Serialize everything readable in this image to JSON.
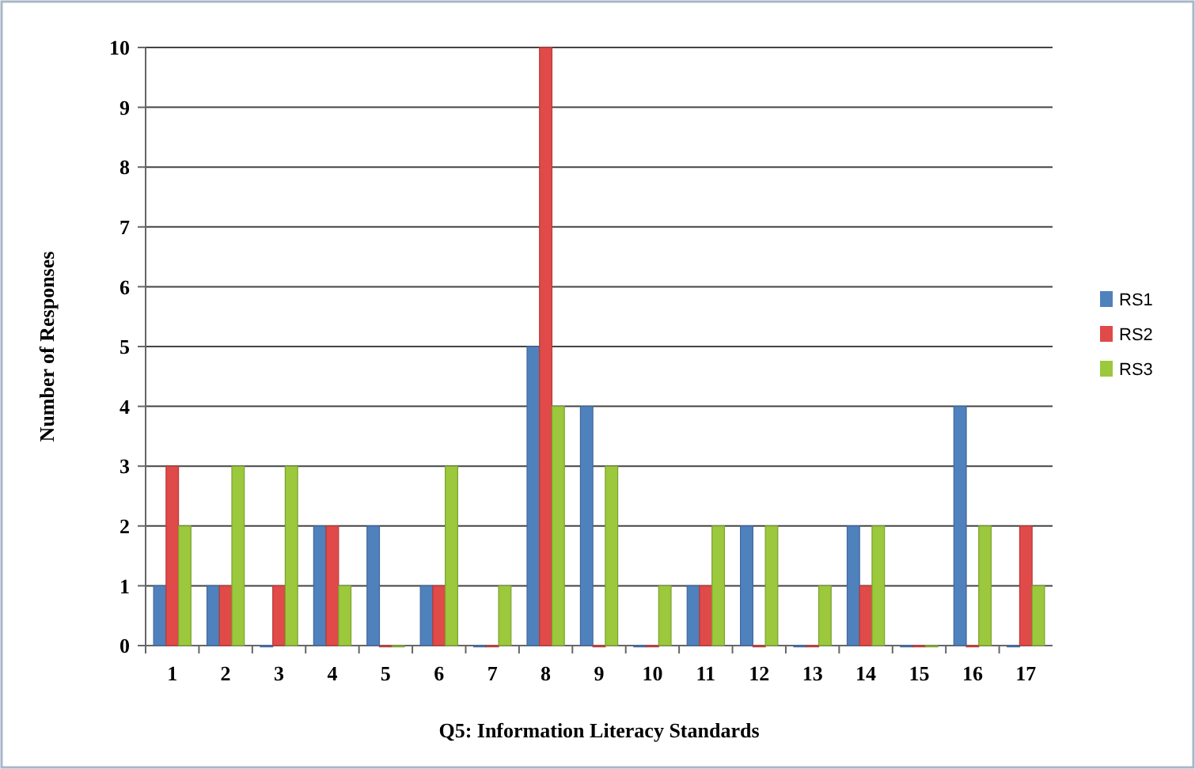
{
  "chart_data": {
    "type": "bar",
    "xlabel": "Q5: Information Literacy Standards",
    "ylabel": "Number of Responses",
    "categories": [
      "1",
      "2",
      "3",
      "4",
      "5",
      "6",
      "7",
      "8",
      "9",
      "10",
      "11",
      "12",
      "13",
      "14",
      "15",
      "16",
      "17"
    ],
    "series": [
      {
        "name": "RS1",
        "color": "#4f81bd",
        "values": [
          1,
          1,
          0,
          2,
          2,
          1,
          0,
          5,
          4,
          0,
          1,
          2,
          0,
          2,
          0,
          4,
          0
        ]
      },
      {
        "name": "RS2",
        "color": "#e04a48",
        "values": [
          3,
          1,
          1,
          2,
          0,
          1,
          0,
          10,
          0,
          0,
          1,
          0,
          0,
          1,
          0,
          0,
          2
        ]
      },
      {
        "name": "RS3",
        "color": "#9bc83c",
        "values": [
          2,
          3,
          3,
          1,
          0,
          3,
          1,
          4,
          3,
          1,
          2,
          2,
          1,
          2,
          0,
          2,
          1
        ]
      }
    ],
    "ylim": [
      0,
      10
    ],
    "yticks": [
      0,
      1,
      2,
      3,
      4,
      5,
      6,
      7,
      8,
      9,
      10
    ],
    "grid": "y",
    "legend": "right"
  }
}
